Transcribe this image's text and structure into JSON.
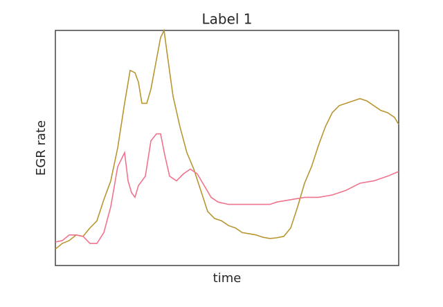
{
  "chart_data": {
    "type": "line",
    "title": "Label 1",
    "xlabel": "time",
    "ylabel": "EGR rate",
    "xlim": [
      0,
      496
    ],
    "ylim": [
      0,
      100
    ],
    "series": [
      {
        "color": "#b8952f",
        "x": [
          0,
          10,
          20,
          30,
          40,
          50,
          60,
          70,
          80,
          90,
          100,
          108,
          115,
          120,
          125,
          132,
          138,
          145,
          152,
          157,
          162,
          170,
          180,
          190,
          200,
          210,
          220,
          230,
          240,
          250,
          260,
          270,
          280,
          290,
          300,
          310,
          320,
          330,
          340,
          350,
          360,
          370,
          380,
          390,
          400,
          410,
          420,
          430,
          440,
          450,
          460,
          470,
          480,
          490,
          496
        ],
        "values": [
          7,
          9.4,
          10.6,
          13,
          12.4,
          16,
          19,
          28,
          36,
          50,
          69,
          83,
          82,
          78,
          69,
          69,
          75,
          86,
          97,
          100,
          89,
          72,
          59,
          48,
          41,
          32,
          23,
          20,
          19,
          17,
          16,
          14,
          13.5,
          13,
          12,
          11.5,
          11.8,
          12.4,
          16,
          25,
          35,
          42,
          51,
          59,
          65,
          68,
          69,
          70,
          71,
          70,
          68,
          66,
          65,
          63,
          60
        ]
      },
      {
        "color": "#f0728c",
        "x": [
          0,
          10,
          20,
          30,
          40,
          50,
          60,
          70,
          80,
          90,
          100,
          105,
          110,
          115,
          120,
          130,
          138,
          146,
          152,
          158,
          165,
          175,
          185,
          195,
          205,
          215,
          225,
          235,
          250,
          270,
          290,
          310,
          320,
          340,
          360,
          380,
          400,
          420,
          440,
          460,
          480,
          496
        ],
        "values": [
          10,
          10.6,
          13,
          13,
          12.4,
          9.4,
          9.4,
          14,
          25,
          42,
          48,
          36,
          31,
          29,
          34,
          38,
          53,
          56,
          56,
          47,
          38,
          36,
          39,
          41,
          39,
          34,
          29,
          27,
          26,
          26,
          26,
          26,
          27,
          28,
          29,
          29,
          30,
          32,
          35,
          36,
          38,
          40
        ]
      }
    ]
  }
}
